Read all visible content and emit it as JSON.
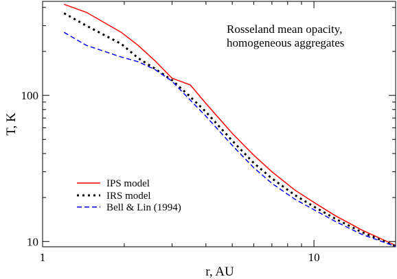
{
  "chart_data": {
    "type": "line",
    "title": "",
    "annotation": [
      "Rosseland mean opacity,",
      "homogeneous aggregates"
    ],
    "xlabel": "r, AU",
    "ylabel": "T, K",
    "xscale": "log",
    "yscale": "log",
    "xlim": [
      1,
      20
    ],
    "ylim": [
      9.2,
      440
    ],
    "xticks": [
      {
        "value": 1,
        "label": "1"
      },
      {
        "value": 10,
        "label": "10"
      }
    ],
    "yticks": [
      {
        "value": 10,
        "label": "10"
      },
      {
        "value": 100,
        "label": "100"
      }
    ],
    "legend_position": "bottom-left",
    "grid": false,
    "series": [
      {
        "name": "IPS model",
        "color": "#ff0000",
        "style": "solid",
        "x": [
          1.2,
          1.45,
          1.95,
          2.25,
          2.6,
          3.0,
          3.5,
          4.0,
          5.0,
          6.0,
          7.0,
          8.5,
          10.0,
          12.0,
          15.0,
          20.0
        ],
        "y": [
          420,
          370,
          270,
          220,
          172,
          131,
          118,
          88,
          55,
          39,
          30,
          22.5,
          18.5,
          15.0,
          12.0,
          9.4
        ]
      },
      {
        "name": "IRS model",
        "color": "#000000",
        "style": "dotted",
        "x": [
          1.2,
          1.45,
          1.95,
          2.25,
          2.6,
          3.0,
          3.5,
          4.0,
          5.0,
          6.0,
          7.0,
          8.5,
          10.0,
          12.0,
          15.0,
          20.0
        ],
        "y": [
          365,
          300,
          225,
          180,
          152,
          127,
          98,
          77,
          49,
          34.5,
          27,
          20.8,
          17.3,
          14.3,
          11.6,
          9.3
        ]
      },
      {
        "name": "Bell & Lin (1994)",
        "color": "#0000ff",
        "style": "dashed",
        "x": [
          1.2,
          1.45,
          1.95,
          2.25,
          2.6,
          3.0,
          3.5,
          4.0,
          5.0,
          6.0,
          7.0,
          8.5,
          10.0,
          12.0,
          15.0,
          20.0
        ],
        "y": [
          270,
          220,
          183,
          170,
          150,
          125,
          93,
          72,
          45.5,
          32,
          25,
          19.5,
          16.5,
          13.7,
          11.2,
          9.25
        ]
      }
    ]
  }
}
